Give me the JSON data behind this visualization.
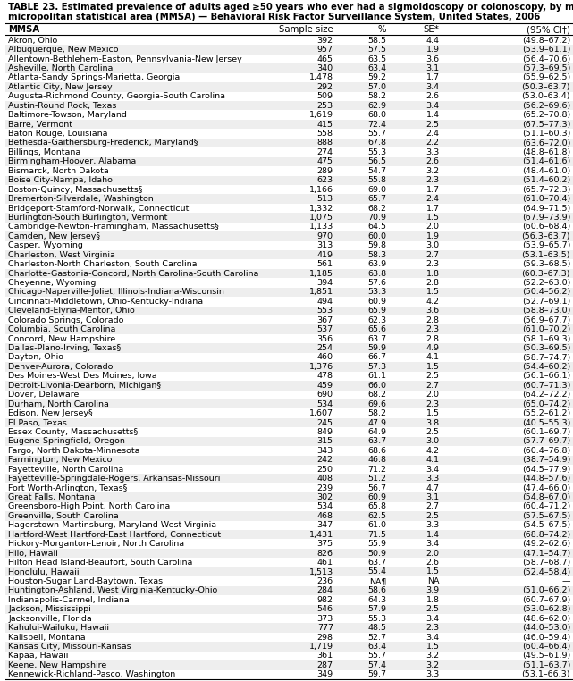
{
  "title1": "TABLE 23. Estimated prevalence of adults aged ≥50 years who ever had a sigmoidoscopy or colonoscopy, by metropolitan and",
  "title2": "micropolitan statistical area (MMSA) — Behavioral Risk Factor Surveillance System, United States, 2006",
  "headers": [
    "MMSA",
    "Sample size",
    "%",
    "SE*",
    "(95% CI†)"
  ],
  "rows": [
    [
      "Akron, Ohio",
      "392",
      "58.5",
      "4.4",
      "(49.8–67.2)"
    ],
    [
      "Albuquerque, New Mexico",
      "957",
      "57.5",
      "1.9",
      "(53.9–61.1)"
    ],
    [
      "Allentown-Bethlehem-Easton, Pennsylvania-New Jersey",
      "465",
      "63.5",
      "3.6",
      "(56.4–70.6)"
    ],
    [
      "Asheville, North Carolina",
      "340",
      "63.4",
      "3.1",
      "(57.3–69.5)"
    ],
    [
      "Atlanta-Sandy Springs-Marietta, Georgia",
      "1,478",
      "59.2",
      "1.7",
      "(55.9–62.5)"
    ],
    [
      "Atlantic City, New Jersey",
      "292",
      "57.0",
      "3.4",
      "(50.3–63.7)"
    ],
    [
      "Augusta-Richmond County, Georgia-South Carolina",
      "509",
      "58.2",
      "2.6",
      "(53.0–63.4)"
    ],
    [
      "Austin-Round Rock, Texas",
      "253",
      "62.9",
      "3.4",
      "(56.2–69.6)"
    ],
    [
      "Baltimore-Towson, Maryland",
      "1,619",
      "68.0",
      "1.4",
      "(65.2–70.8)"
    ],
    [
      "Barre, Vermont",
      "415",
      "72.4",
      "2.5",
      "(67.5–77.3)"
    ],
    [
      "Baton Rouge, Louisiana",
      "558",
      "55.7",
      "2.4",
      "(51.1–60.3)"
    ],
    [
      "Bethesda-Gaithersburg-Frederick, Maryland§",
      "888",
      "67.8",
      "2.2",
      "(63.6–72.0)"
    ],
    [
      "Billings, Montana",
      "274",
      "55.3",
      "3.3",
      "(48.8–61.8)"
    ],
    [
      "Birmingham-Hoover, Alabama",
      "475",
      "56.5",
      "2.6",
      "(51.4–61.6)"
    ],
    [
      "Bismarck, North Dakota",
      "289",
      "54.7",
      "3.2",
      "(48.4–61.0)"
    ],
    [
      "Boise City-Nampa, Idaho",
      "623",
      "55.8",
      "2.3",
      "(51.4–60.2)"
    ],
    [
      "Boston-Quincy, Massachusetts§",
      "1,166",
      "69.0",
      "1.7",
      "(65.7–72.3)"
    ],
    [
      "Bremerton-Silverdale, Washington",
      "513",
      "65.7",
      "2.4",
      "(61.0–70.4)"
    ],
    [
      "Bridgeport-Stamford-Norwalk, Connecticut",
      "1,332",
      "68.2",
      "1.7",
      "(64.9–71.5)"
    ],
    [
      "Burlington-South Burlington, Vermont",
      "1,075",
      "70.9",
      "1.5",
      "(67.9–73.9)"
    ],
    [
      "Cambridge-Newton-Framingham, Massachusetts§",
      "1,133",
      "64.5",
      "2.0",
      "(60.6–68.4)"
    ],
    [
      "Camden, New Jersey§",
      "970",
      "60.0",
      "1.9",
      "(56.3–63.7)"
    ],
    [
      "Casper, Wyoming",
      "313",
      "59.8",
      "3.0",
      "(53.9–65.7)"
    ],
    [
      "Charleston, West Virginia",
      "419",
      "58.3",
      "2.7",
      "(53.1–63.5)"
    ],
    [
      "Charleston-North Charleston, South Carolina",
      "561",
      "63.9",
      "2.3",
      "(59.3–68.5)"
    ],
    [
      "Charlotte-Gastonia-Concord, North Carolina-South Carolina",
      "1,185",
      "63.8",
      "1.8",
      "(60.3–67.3)"
    ],
    [
      "Cheyenne, Wyoming",
      "394",
      "57.6",
      "2.8",
      "(52.2–63.0)"
    ],
    [
      "Chicago-Naperville-Joliet, Illinois-Indiana-Wisconsin",
      "1,851",
      "53.3",
      "1.5",
      "(50.4–56.2)"
    ],
    [
      "Cincinnati-Middletown, Ohio-Kentucky-Indiana",
      "494",
      "60.9",
      "4.2",
      "(52.7–69.1)"
    ],
    [
      "Cleveland-Elyria-Mentor, Ohio",
      "553",
      "65.9",
      "3.6",
      "(58.8–73.0)"
    ],
    [
      "Colorado Springs, Colorado",
      "367",
      "62.3",
      "2.8",
      "(56.9–67.7)"
    ],
    [
      "Columbia, South Carolina",
      "537",
      "65.6",
      "2.3",
      "(61.0–70.2)"
    ],
    [
      "Concord, New Hampshire",
      "356",
      "63.7",
      "2.8",
      "(58.1–69.3)"
    ],
    [
      "Dallas-Plano-Irving, Texas§",
      "254",
      "59.9",
      "4.9",
      "(50.3–69.5)"
    ],
    [
      "Dayton, Ohio",
      "460",
      "66.7",
      "4.1",
      "(58.7–74.7)"
    ],
    [
      "Denver-Aurora, Colorado",
      "1,376",
      "57.3",
      "1.5",
      "(54.4–60.2)"
    ],
    [
      "Des Moines-West Des Moines, Iowa",
      "478",
      "61.1",
      "2.5",
      "(56.1–66.1)"
    ],
    [
      "Detroit-Livonia-Dearborn, Michigan§",
      "459",
      "66.0",
      "2.7",
      "(60.7–71.3)"
    ],
    [
      "Dover, Delaware",
      "690",
      "68.2",
      "2.0",
      "(64.2–72.2)"
    ],
    [
      "Durham, North Carolina",
      "534",
      "69.6",
      "2.3",
      "(65.0–74.2)"
    ],
    [
      "Edison, New Jersey§",
      "1,607",
      "58.2",
      "1.5",
      "(55.2–61.2)"
    ],
    [
      "El Paso, Texas",
      "245",
      "47.9",
      "3.8",
      "(40.5–55.3)"
    ],
    [
      "Essex County, Massachusetts§",
      "849",
      "64.9",
      "2.5",
      "(60.1–69.7)"
    ],
    [
      "Eugene-Springfield, Oregon",
      "315",
      "63.7",
      "3.0",
      "(57.7–69.7)"
    ],
    [
      "Fargo, North Dakota-Minnesota",
      "343",
      "68.6",
      "4.2",
      "(60.4–76.8)"
    ],
    [
      "Farmington, New Mexico",
      "242",
      "46.8",
      "4.1",
      "(38.7–54.9)"
    ],
    [
      "Fayetteville, North Carolina",
      "250",
      "71.2",
      "3.4",
      "(64.5–77.9)"
    ],
    [
      "Fayetteville-Springdale-Rogers, Arkansas-Missouri",
      "408",
      "51.2",
      "3.3",
      "(44.8–57.6)"
    ],
    [
      "Fort Worth-Arlington, Texas§",
      "239",
      "56.7",
      "4.7",
      "(47.4–66.0)"
    ],
    [
      "Great Falls, Montana",
      "302",
      "60.9",
      "3.1",
      "(54.8–67.0)"
    ],
    [
      "Greensboro-High Point, North Carolina",
      "534",
      "65.8",
      "2.7",
      "(60.4–71.2)"
    ],
    [
      "Greenville, South Carolina",
      "468",
      "62.5",
      "2.5",
      "(57.5–67.5)"
    ],
    [
      "Hagerstown-Martinsburg, Maryland-West Virginia",
      "347",
      "61.0",
      "3.3",
      "(54.5–67.5)"
    ],
    [
      "Hartford-West Hartford-East Hartford, Connecticut",
      "1,431",
      "71.5",
      "1.4",
      "(68.8–74.2)"
    ],
    [
      "Hickory-Morganton-Lenoir, North Carolina",
      "375",
      "55.9",
      "3.4",
      "(49.2–62.6)"
    ],
    [
      "Hilo, Hawaii",
      "826",
      "50.9",
      "2.0",
      "(47.1–54.7)"
    ],
    [
      "Hilton Head Island-Beaufort, South Carolina",
      "461",
      "63.7",
      "2.6",
      "(58.7–68.7)"
    ],
    [
      "Honolulu, Hawaii",
      "1,513",
      "55.4",
      "1.5",
      "(52.4–58.4)"
    ],
    [
      "Houston-Sugar Land-Baytown, Texas",
      "236",
      "NA¶",
      "NA",
      "—"
    ],
    [
      "Huntington-Ashland, West Virginia-Kentucky-Ohio",
      "284",
      "58.6",
      "3.9",
      "(51.0–66.2)"
    ],
    [
      "Indianapolis-Carmel, Indiana",
      "982",
      "64.3",
      "1.8",
      "(60.7–67.9)"
    ],
    [
      "Jackson, Mississippi",
      "546",
      "57.9",
      "2.5",
      "(53.0–62.8)"
    ],
    [
      "Jacksonville, Florida",
      "373",
      "55.3",
      "3.4",
      "(48.6–62.0)"
    ],
    [
      "Kahului-Wailuku, Hawaii",
      "777",
      "48.5",
      "2.3",
      "(44.0–53.0)"
    ],
    [
      "Kalispell, Montana",
      "298",
      "52.7",
      "3.4",
      "(46.0–59.4)"
    ],
    [
      "Kansas City, Missouri-Kansas",
      "1,719",
      "63.4",
      "1.5",
      "(60.4–66.4)"
    ],
    [
      "Kapaa, Hawaii",
      "361",
      "55.7",
      "3.2",
      "(49.5–61.9)"
    ],
    [
      "Keene, New Hampshire",
      "287",
      "57.4",
      "3.2",
      "(51.1–63.7)"
    ],
    [
      "Kennewick-Richland-Pasco, Washington",
      "349",
      "59.7",
      "3.3",
      "(53.1–66.3)"
    ]
  ],
  "bg_color": "#ffffff",
  "text_color": "#000000",
  "title_fontsize": 7.3,
  "header_fontsize": 7.3,
  "row_fontsize": 6.8
}
